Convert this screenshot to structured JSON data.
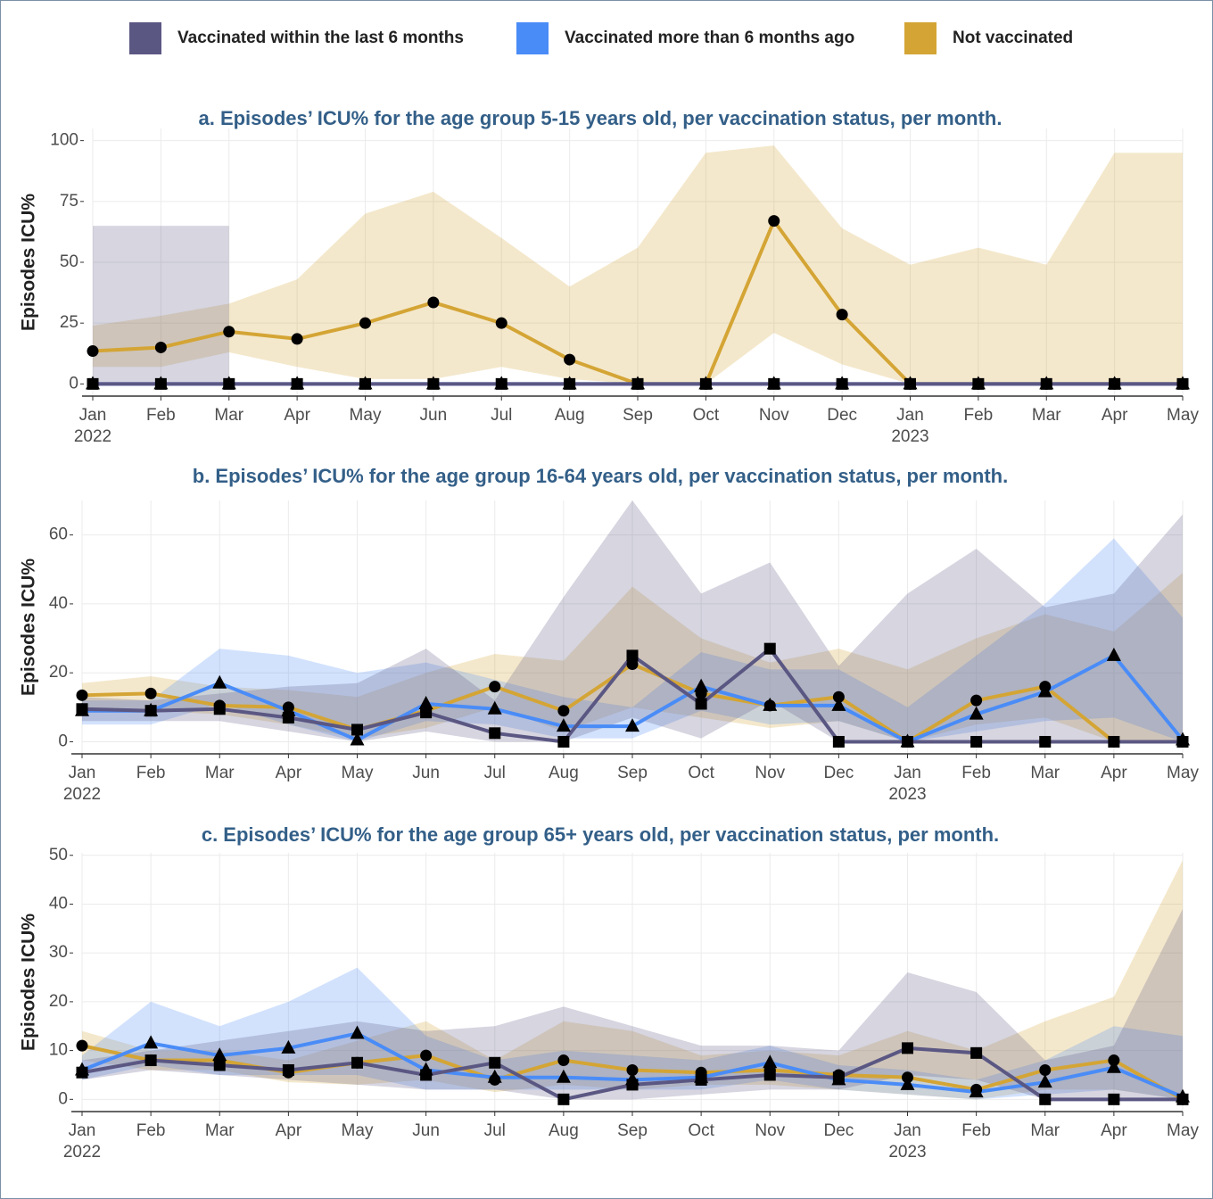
{
  "legend": [
    {
      "name": "Vaccinated within the last 6 months",
      "color": "#5b5783"
    },
    {
      "name": "Vaccinated more than 6 months ago",
      "color": "#4a8cf7"
    },
    {
      "name": "Not vaccinated",
      "color": "#d4a535"
    }
  ],
  "chart_data": [
    {
      "type": "line",
      "title": "a. Episodes’ ICU% for the age group 5-15 years old, per vaccination status, per month.",
      "y_label": "Episodes  ICU%",
      "x": [
        "2022-01",
        "2022-02",
        "2022-03",
        "2022-04",
        "2022-05",
        "2022-06",
        "2022-07",
        "2022-08",
        "2022-09",
        "2022-10",
        "2022-11",
        "2022-12",
        "2023-01",
        "2023-02",
        "2023-03",
        "2023-04",
        "2023-05"
      ],
      "xticks": [
        {
          "value": "2022-01",
          "label": "Jan"
        },
        {
          "value": "2022-02",
          "label": "Feb"
        },
        {
          "value": "2022-03",
          "label": "Mar"
        },
        {
          "value": "2022-04",
          "label": "Apr"
        },
        {
          "value": "2022-05",
          "label": "May"
        },
        {
          "value": "2022-06",
          "label": "Jun"
        },
        {
          "value": "2022-07",
          "label": "Jul"
        },
        {
          "value": "2022-08",
          "label": "Aug"
        },
        {
          "value": "2022-09",
          "label": "Sep"
        },
        {
          "value": "2022-10",
          "label": "Oct"
        },
        {
          "value": "2022-11",
          "label": "Nov"
        },
        {
          "value": "2022-12",
          "label": "Dec"
        },
        {
          "value": "2023-01",
          "label": "Jan"
        },
        {
          "value": "2023-02",
          "label": "Feb"
        },
        {
          "value": "2023-03",
          "label": "Mar"
        },
        {
          "value": "2023-04",
          "label": "Apr"
        },
        {
          "value": "2023-05",
          "label": "May"
        }
      ],
      "year_ticks": [
        {
          "value": "2022-01",
          "label": "2022"
        },
        {
          "value": "2023-01",
          "label": "2023"
        }
      ],
      "ylim": [
        -5,
        105
      ],
      "yticks": [
        0,
        25,
        50,
        75,
        100
      ],
      "grid": true,
      "series": [
        {
          "color": "#5b5783",
          "marker": "square",
          "values": [
            0,
            0,
            0,
            0,
            0,
            0,
            0,
            0,
            0,
            0,
            0,
            0,
            0,
            0,
            0,
            0,
            0
          ],
          "upper": [
            65,
            65,
            65,
            null,
            null,
            null,
            null,
            null,
            null,
            null,
            null,
            null,
            null,
            null,
            null,
            null,
            null
          ],
          "lower": [
            0,
            0,
            0,
            null,
            null,
            null,
            null,
            null,
            null,
            null,
            null,
            null,
            null,
            null,
            null,
            null,
            null
          ]
        },
        {
          "color": "#4a8cf7",
          "marker": "triangle",
          "values": [
            0,
            0,
            0,
            0,
            0,
            0,
            0,
            0,
            0,
            0,
            0,
            0,
            0,
            0,
            0,
            0,
            0
          ]
        },
        {
          "color": "#d4a535",
          "marker": "circle",
          "values": [
            13.5,
            15,
            21.5,
            18.5,
            25,
            33.5,
            25,
            10,
            0,
            0,
            67,
            28.5,
            0,
            0,
            0,
            0,
            0
          ],
          "upper": [
            24,
            28,
            33,
            43,
            70,
            79,
            60,
            40,
            56,
            95,
            98,
            64,
            49,
            56,
            49,
            95,
            95
          ],
          "lower": [
            7,
            7,
            13,
            7,
            2,
            2,
            7,
            2,
            0,
            0,
            21,
            8,
            0,
            0,
            0,
            0,
            0
          ]
        }
      ]
    },
    {
      "type": "line",
      "title": "b. Episodes’ ICU% for the age group 16-64 years old, per vaccination status, per month.",
      "y_label": "Episodes  ICU%",
      "x": [
        "2022-01",
        "2022-02",
        "2022-03",
        "2022-04",
        "2022-05",
        "2022-06",
        "2022-07",
        "2022-08",
        "2022-09",
        "2022-10",
        "2022-11",
        "2022-12",
        "2023-01",
        "2023-02",
        "2023-03",
        "2023-04",
        "2023-05"
      ],
      "xticks": [
        {
          "value": "2022-01",
          "label": "Jan"
        },
        {
          "value": "2022-02",
          "label": "Feb"
        },
        {
          "value": "2022-03",
          "label": "Mar"
        },
        {
          "value": "2022-04",
          "label": "Apr"
        },
        {
          "value": "2022-05",
          "label": "May"
        },
        {
          "value": "2022-06",
          "label": "Jun"
        },
        {
          "value": "2022-07",
          "label": "Jul"
        },
        {
          "value": "2022-08",
          "label": "Aug"
        },
        {
          "value": "2022-09",
          "label": "Sep"
        },
        {
          "value": "2022-10",
          "label": "Oct"
        },
        {
          "value": "2022-11",
          "label": "Nov"
        },
        {
          "value": "2022-12",
          "label": "Dec"
        },
        {
          "value": "2023-01",
          "label": "Jan"
        },
        {
          "value": "2023-02",
          "label": "Feb"
        },
        {
          "value": "2023-03",
          "label": "Mar"
        },
        {
          "value": "2023-04",
          "label": "Apr"
        },
        {
          "value": "2023-05",
          "label": "May"
        }
      ],
      "year_ticks": [
        {
          "value": "2022-01",
          "label": "2022"
        },
        {
          "value": "2023-01",
          "label": "2023"
        }
      ],
      "ylim": [
        -3.5,
        70
      ],
      "yticks": [
        0,
        20,
        40,
        60
      ],
      "grid": true,
      "series": [
        {
          "color": "#5b5783",
          "marker": "square",
          "values": [
            9.5,
            9,
            9.5,
            7,
            3.5,
            8.5,
            2.5,
            0,
            25,
            11,
            27,
            0,
            0,
            0,
            0,
            0,
            0
          ],
          "upper": [
            13,
            12,
            14,
            16,
            17,
            27,
            12,
            42,
            70,
            43,
            52,
            22,
            43,
            56,
            39,
            43,
            66
          ],
          "lower": [
            6,
            6,
            6,
            3,
            0,
            3,
            0,
            0,
            7,
            1,
            12,
            0,
            0,
            0,
            0,
            0,
            0
          ]
        },
        {
          "color": "#4a8cf7",
          "marker": "triangle",
          "values": [
            9,
            9,
            17,
            9,
            0.5,
            11,
            9.5,
            4.5,
            4.5,
            16,
            10.5,
            10.5,
            0,
            8,
            14.5,
            25,
            0.5
          ],
          "upper": [
            12,
            12,
            27,
            25,
            20,
            23,
            18,
            13,
            10,
            26,
            21,
            21,
            10,
            25,
            40,
            59,
            36
          ],
          "lower": [
            5,
            5,
            11,
            5,
            0,
            6,
            5,
            1,
            1,
            9,
            5,
            6,
            0,
            3,
            6,
            7,
            0
          ]
        },
        {
          "color": "#d4a535",
          "marker": "circle",
          "values": [
            13.5,
            14,
            10.5,
            10,
            3.5,
            9,
            16,
            9,
            22.5,
            14,
            10.5,
            13,
            0,
            12,
            16,
            0,
            0
          ],
          "upper": [
            17,
            19,
            16,
            15,
            13,
            20,
            25.5,
            23.5,
            45,
            30,
            23,
            27,
            21,
            30,
            37,
            32,
            49
          ],
          "lower": [
            9,
            9,
            8,
            5,
            1,
            4,
            10,
            3,
            10,
            7,
            4,
            6,
            0,
            5,
            7,
            0,
            0
          ]
        }
      ]
    },
    {
      "type": "line",
      "title": "c. Episodes’ ICU% for the age group 65+ years old, per vaccination status, per month.",
      "y_label": "Episodes  ICU%",
      "x": [
        "2022-01",
        "2022-02",
        "2022-03",
        "2022-04",
        "2022-05",
        "2022-06",
        "2022-07",
        "2022-08",
        "2022-09",
        "2022-10",
        "2022-11",
        "2022-12",
        "2023-01",
        "2023-02",
        "2023-03",
        "2023-04",
        "2023-05"
      ],
      "xticks": [
        {
          "value": "2022-01",
          "label": "Jan"
        },
        {
          "value": "2022-02",
          "label": "Feb"
        },
        {
          "value": "2022-03",
          "label": "Mar"
        },
        {
          "value": "2022-04",
          "label": "Apr"
        },
        {
          "value": "2022-05",
          "label": "May"
        },
        {
          "value": "2022-06",
          "label": "Jun"
        },
        {
          "value": "2022-07",
          "label": "Jul"
        },
        {
          "value": "2022-08",
          "label": "Aug"
        },
        {
          "value": "2022-09",
          "label": "Sep"
        },
        {
          "value": "2022-10",
          "label": "Oct"
        },
        {
          "value": "2022-11",
          "label": "Nov"
        },
        {
          "value": "2022-12",
          "label": "Dec"
        },
        {
          "value": "2023-01",
          "label": "Jan"
        },
        {
          "value": "2023-02",
          "label": "Feb"
        },
        {
          "value": "2023-03",
          "label": "Mar"
        },
        {
          "value": "2023-04",
          "label": "Apr"
        },
        {
          "value": "2023-05",
          "label": "May"
        }
      ],
      "year_ticks": [
        {
          "value": "2022-01",
          "label": "2022"
        },
        {
          "value": "2023-01",
          "label": "2023"
        }
      ],
      "ylim": [
        -2.5,
        50.5
      ],
      "yticks": [
        0,
        10,
        20,
        30,
        40,
        50
      ],
      "grid": true,
      "series": [
        {
          "color": "#5b5783",
          "marker": "square",
          "values": [
            5.5,
            8,
            7,
            6,
            7.5,
            5,
            7.5,
            0,
            3,
            4,
            5,
            4.5,
            10.5,
            9.5,
            0,
            0,
            0
          ],
          "upper": [
            8,
            10,
            12,
            14,
            16,
            14,
            15,
            19,
            15,
            11,
            11,
            10,
            26,
            22,
            8,
            11,
            39
          ],
          "lower": [
            4,
            6,
            5,
            4,
            3,
            2,
            2,
            0,
            0,
            1,
            2,
            2,
            5,
            4,
            0,
            0,
            0
          ]
        },
        {
          "color": "#4a8cf7",
          "marker": "triangle",
          "values": [
            6,
            11.5,
            9,
            10.5,
            13.5,
            6,
            4.5,
            4.5,
            4,
            4.5,
            7.5,
            4,
            3,
            1.5,
            3.5,
            6.5,
            0.5
          ],
          "upper": [
            9,
            20,
            15,
            20,
            27,
            13,
            8,
            10,
            9,
            8,
            11,
            7,
            6,
            4,
            8,
            15,
            13
          ],
          "lower": [
            4,
            7,
            5,
            5,
            5,
            2,
            2,
            2,
            2,
            2,
            4,
            2,
            1,
            0,
            1,
            2,
            0
          ]
        },
        {
          "color": "#d4a535",
          "marker": "circle",
          "values": [
            11,
            8,
            8,
            5.5,
            7.5,
            9,
            4,
            8,
            6,
            5.5,
            6,
            5,
            4.5,
            2,
            6,
            8,
            0
          ],
          "upper": [
            14,
            10,
            10,
            8,
            12,
            16,
            8,
            16,
            14,
            9,
            10,
            9,
            14,
            10,
            16,
            21,
            49
          ],
          "lower": [
            8,
            6,
            6,
            3.5,
            3,
            4,
            1.5,
            3,
            2,
            3,
            3,
            2,
            1,
            0,
            2,
            2,
            0
          ]
        }
      ]
    }
  ]
}
